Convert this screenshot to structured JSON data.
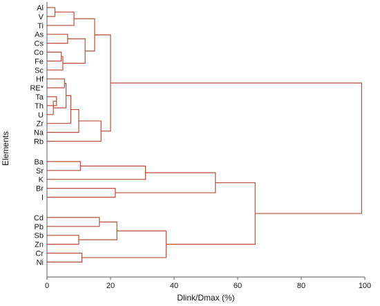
{
  "chart_data": {
    "type": "dendrogram",
    "xlabel": "Dlink/Dmax (%)",
    "ylabel": "Elements",
    "xlim": [
      0,
      100
    ],
    "xticks": [
      "0",
      "20",
      "40",
      "60",
      "80",
      "100"
    ],
    "grid": false,
    "leaves": [
      "Al",
      "V",
      "Ti",
      "As",
      "Cs",
      "Co",
      "Fe",
      "Sc",
      "Hf",
      "RE*",
      "Ta",
      "Th",
      "U",
      "Zr",
      "Na",
      "Rb",
      "Ba",
      "Sr",
      "K",
      "Br",
      "I",
      "Cd",
      "Pb",
      "Sb",
      "Zn",
      "Cr",
      "Ni"
    ],
    "leaf_groups": [
      16,
      5,
      6
    ],
    "merges": [
      {
        "id": "m1",
        "children": [
          "Al",
          "V"
        ],
        "height": 2.5
      },
      {
        "id": "m2",
        "children": [
          "m1",
          "Ti"
        ],
        "height": 8.5
      },
      {
        "id": "m3",
        "children": [
          "As",
          "Cs"
        ],
        "height": 6.5
      },
      {
        "id": "m4",
        "children": [
          "Co",
          "Fe"
        ],
        "height": 4.5
      },
      {
        "id": "m5",
        "children": [
          "m4",
          "Sc"
        ],
        "height": 5.0
      },
      {
        "id": "m6",
        "children": [
          "m3",
          "m5"
        ],
        "height": 12.0
      },
      {
        "id": "m7",
        "children": [
          "m2",
          "m6"
        ],
        "height": 15.0
      },
      {
        "id": "m8",
        "children": [
          "Hf",
          "RE*"
        ],
        "height": 5.5
      },
      {
        "id": "m9",
        "children": [
          "Ta",
          "Th"
        ],
        "height": 3.0
      },
      {
        "id": "m10",
        "children": [
          "m9",
          "U"
        ],
        "height": 2.0
      },
      {
        "id": "m11",
        "children": [
          "m8",
          "m10"
        ],
        "height": 6.0
      },
      {
        "id": "m12",
        "children": [
          "m11",
          "Zr"
        ],
        "height": 7.5
      },
      {
        "id": "m13",
        "children": [
          "m12",
          "Na"
        ],
        "height": 10.0
      },
      {
        "id": "m14",
        "children": [
          "m13",
          "Rb"
        ],
        "height": 17.0
      },
      {
        "id": "m15",
        "children": [
          "m7",
          "m14"
        ],
        "height": 20.0
      },
      {
        "id": "m16",
        "children": [
          "Ba",
          "Sr"
        ],
        "height": 10.5
      },
      {
        "id": "m17",
        "children": [
          "m16",
          "K"
        ],
        "height": 31.0
      },
      {
        "id": "m18",
        "children": [
          "Br",
          "I"
        ],
        "height": 21.5
      },
      {
        "id": "m19",
        "children": [
          "m17",
          "m18"
        ],
        "height": 53.0
      },
      {
        "id": "m20",
        "children": [
          "Cd",
          "Pb"
        ],
        "height": 16.5
      },
      {
        "id": "m21",
        "children": [
          "Sb",
          "Zn"
        ],
        "height": 10.0
      },
      {
        "id": "m22",
        "children": [
          "m20",
          "m21"
        ],
        "height": 22.0
      },
      {
        "id": "m23",
        "children": [
          "Cr",
          "Ni"
        ],
        "height": 11.0
      },
      {
        "id": "m24",
        "children": [
          "m22",
          "m23"
        ],
        "height": 37.5
      },
      {
        "id": "m25",
        "children": [
          "m19",
          "m24"
        ],
        "height": 65.5
      },
      {
        "id": "m26",
        "children": [
          "m15",
          "m25"
        ],
        "height": 99.0
      }
    ]
  },
  "colors": {
    "link": "#b94c3a",
    "axis": "#555555",
    "text": "#111111"
  }
}
